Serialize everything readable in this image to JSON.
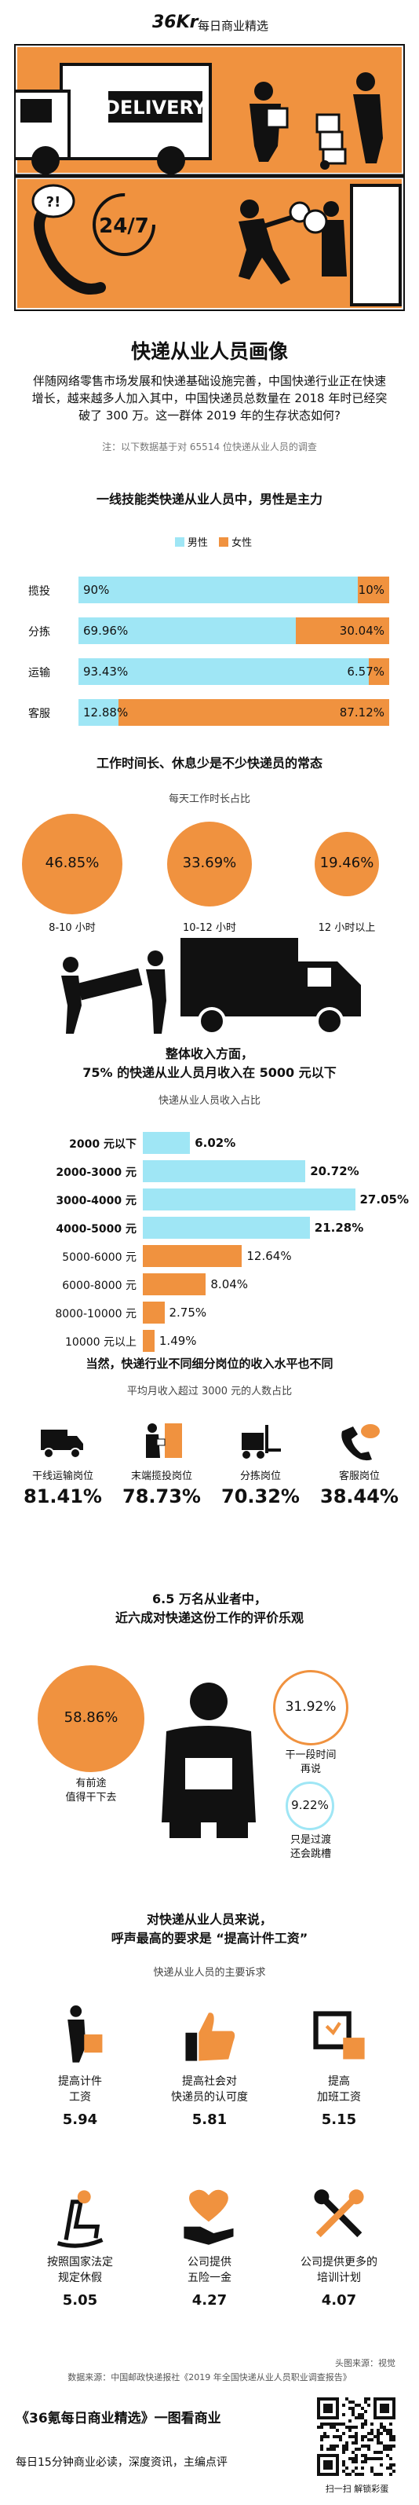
{
  "brand": {
    "logo": "36Kr",
    "tagline": "每日商业精选"
  },
  "hero": {
    "truck_text": "DELIVERY",
    "clock_text": "24/7",
    "bubble_text": "?!"
  },
  "title": "快递从业人员画像",
  "intro": "伴随网络零售市场发展和快递基础设施完善，中国快递行业正在快速增长，越来越多人加入其中，中国快递员总数量在 2018 年时已经突破了 300 万。这一群体 2019 年的生存状态如何?",
  "survey_note": "注：以下数据基于对 65514 位快递从业人员的调查",
  "colors": {
    "orange": "#f0923f",
    "cyan": "#9fe6f5",
    "black": "#111111"
  },
  "gender": {
    "title": "一线技能类快递从业人员中，男性是主力",
    "legend": {
      "male": "男性",
      "female": "女性"
    }
  },
  "hours": {
    "title": "工作时间长、休息少是不少快递员的常态",
    "subtitle": "每天工作时长占比"
  },
  "income": {
    "title": "整体收入方面，",
    "title2": "75% 的快递从业人员月收入在 5000 元以下",
    "subtitle": "快递从业人员收入占比"
  },
  "jobs": {
    "title": "当然，快递行业不同细分岗位的收入水平也不同",
    "subtitle": "平均月收入超过 3000 元的人数占比",
    "items": [
      {
        "label": "干线运输岗位",
        "value": "81.41%",
        "icon": "truck-icon"
      },
      {
        "label": "末端揽投岗位",
        "value": "78.73%",
        "icon": "courier-door-icon"
      },
      {
        "label": "分拣岗位",
        "value": "70.32%",
        "icon": "forklift-icon"
      },
      {
        "label": "客服岗位",
        "value": "38.44%",
        "icon": "phone-icon"
      }
    ]
  },
  "evaluation": {
    "title": "6.5 万名从业者中，",
    "title2": "近六成对快递这份工作的评价乐观",
    "big_value": "58.86%",
    "big_label": "有前途\n值得干下去",
    "mid_value": "31.92%",
    "mid_label": "干一段时间\n再说",
    "small_value": "9.22%",
    "small_label": "只是过渡\n还会跳槽"
  },
  "demands": {
    "title": "对快递从业人员来说，",
    "title2": "呼声最高的要求是 “提高计件工资”",
    "subtitle": "快递从业人员的主要诉求",
    "items": [
      {
        "label": "提高计件\n工资",
        "value": "5.94",
        "icon": "piece-wage-icon"
      },
      {
        "label": "提高社会对\n快递员的认可度",
        "value": "5.81",
        "icon": "thumbs-up-icon"
      },
      {
        "label": "提高\n加班工资",
        "value": "5.15",
        "icon": "overtime-pay-icon"
      },
      {
        "label": "按照国家法定\n规定休假",
        "value": "5.05",
        "icon": "rocking-chair-icon"
      },
      {
        "label": "公司提供\n五险一金",
        "value": "4.27",
        "icon": "insurance-icon"
      },
      {
        "label": "公司提供更多的\n培训计划",
        "value": "4.07",
        "icon": "tools-icon"
      }
    ]
  },
  "sources": {
    "header_credit": "头图来源：视觉",
    "data_source": "数据来源：中国邮政快递报社《2019 年全国快递从业人员职业调查报告》"
  },
  "footer": {
    "title": "《36氪每日商业精选》一图看商业",
    "subtitle": "每日15分钟商业必读，深度资讯，主编点评",
    "qr_caption": "扫一扫 解锁彩蛋"
  },
  "chart_data": [
    {
      "type": "bar",
      "title": "一线技能类快递从业人员中，男性是主力",
      "categories": [
        "揽投",
        "分拣",
        "运输",
        "客服"
      ],
      "series": [
        {
          "name": "男性",
          "values": [
            90,
            69.96,
            93.43,
            12.88
          ],
          "labels": [
            "90%",
            "69.96%",
            "93.43%",
            "12.88%"
          ]
        },
        {
          "name": "女性",
          "values": [
            10,
            30.04,
            6.57,
            87.12
          ],
          "labels": [
            "10%",
            "30.04%",
            "6.57%",
            "87.12%"
          ]
        }
      ],
      "stacked": true,
      "orientation": "horizontal",
      "legend": "top"
    },
    {
      "type": "bubble",
      "title": "每天工作时长占比",
      "categories": [
        "8-10 小时",
        "10-12 小时",
        "12 小时以上"
      ],
      "values": [
        46.85,
        33.69,
        19.46
      ],
      "labels": [
        "46.85%",
        "33.69%",
        "19.46%"
      ]
    },
    {
      "type": "bar",
      "title": "快递从业人员收入占比",
      "orientation": "horizontal",
      "categories": [
        "2000 元以下",
        "2000-3000 元",
        "3000-4000 元",
        "4000-5000 元",
        "5000-6000 元",
        "6000-8000 元",
        "8000-10000 元",
        "10000 元以上"
      ],
      "values": [
        6.02,
        20.72,
        27.05,
        21.28,
        12.64,
        8.04,
        2.75,
        1.49
      ],
      "labels": [
        "6.02%",
        "20.72%",
        "27.05%",
        "21.28%",
        "12.64%",
        "8.04%",
        "2.75%",
        "1.49%"
      ],
      "highlight": [
        true,
        true,
        true,
        true,
        false,
        false,
        false,
        false
      ]
    },
    {
      "type": "bubble",
      "title": "6.5 万名从业者中，近六成对快递这份工作的评价乐观",
      "categories": [
        "有前途 值得干下去",
        "干一段时间 再说",
        "只是过渡 还会跳槽"
      ],
      "values": [
        58.86,
        31.92,
        9.22
      ]
    }
  ]
}
